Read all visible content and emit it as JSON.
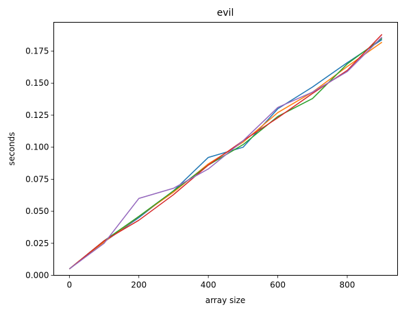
{
  "chart_data": {
    "type": "line",
    "title": "evil",
    "xlabel": "array size",
    "ylabel": "seconds",
    "xlim": [
      -45,
      945
    ],
    "ylim": [
      0,
      0.1975
    ],
    "xticks": [
      0,
      200,
      400,
      600,
      800
    ],
    "xtick_labels": [
      "0",
      "200",
      "400",
      "600",
      "800"
    ],
    "yticks": [
      0.0,
      0.025,
      0.05,
      0.075,
      0.1,
      0.125,
      0.15,
      0.175
    ],
    "ytick_labels": [
      "0.000",
      "0.025",
      "0.050",
      "0.075",
      "0.100",
      "0.125",
      "0.150",
      "0.175"
    ],
    "grid": false,
    "x": [
      0,
      100,
      200,
      300,
      400,
      500,
      600,
      700,
      800,
      900
    ],
    "series": [
      {
        "color": "#1f77b4",
        "values": [
          0.005,
          0.026,
          0.045,
          0.066,
          0.092,
          0.1,
          0.13,
          0.147,
          0.166,
          0.184
        ]
      },
      {
        "color": "#ff7f0e",
        "values": [
          0.005,
          0.026,
          0.046,
          0.065,
          0.087,
          0.104,
          0.127,
          0.143,
          0.163,
          0.182
        ]
      },
      {
        "color": "#2ca02c",
        "values": [
          0.005,
          0.027,
          0.046,
          0.066,
          0.086,
          0.102,
          0.124,
          0.138,
          0.165,
          0.185
        ]
      },
      {
        "color": "#d62728",
        "values": [
          0.005,
          0.027,
          0.043,
          0.063,
          0.086,
          0.105,
          0.123,
          0.142,
          0.16,
          0.188
        ]
      },
      {
        "color": "#9467bd",
        "values": [
          0.005,
          0.025,
          0.06,
          0.068,
          0.083,
          0.105,
          0.131,
          0.143,
          0.159,
          0.186
        ]
      }
    ]
  }
}
